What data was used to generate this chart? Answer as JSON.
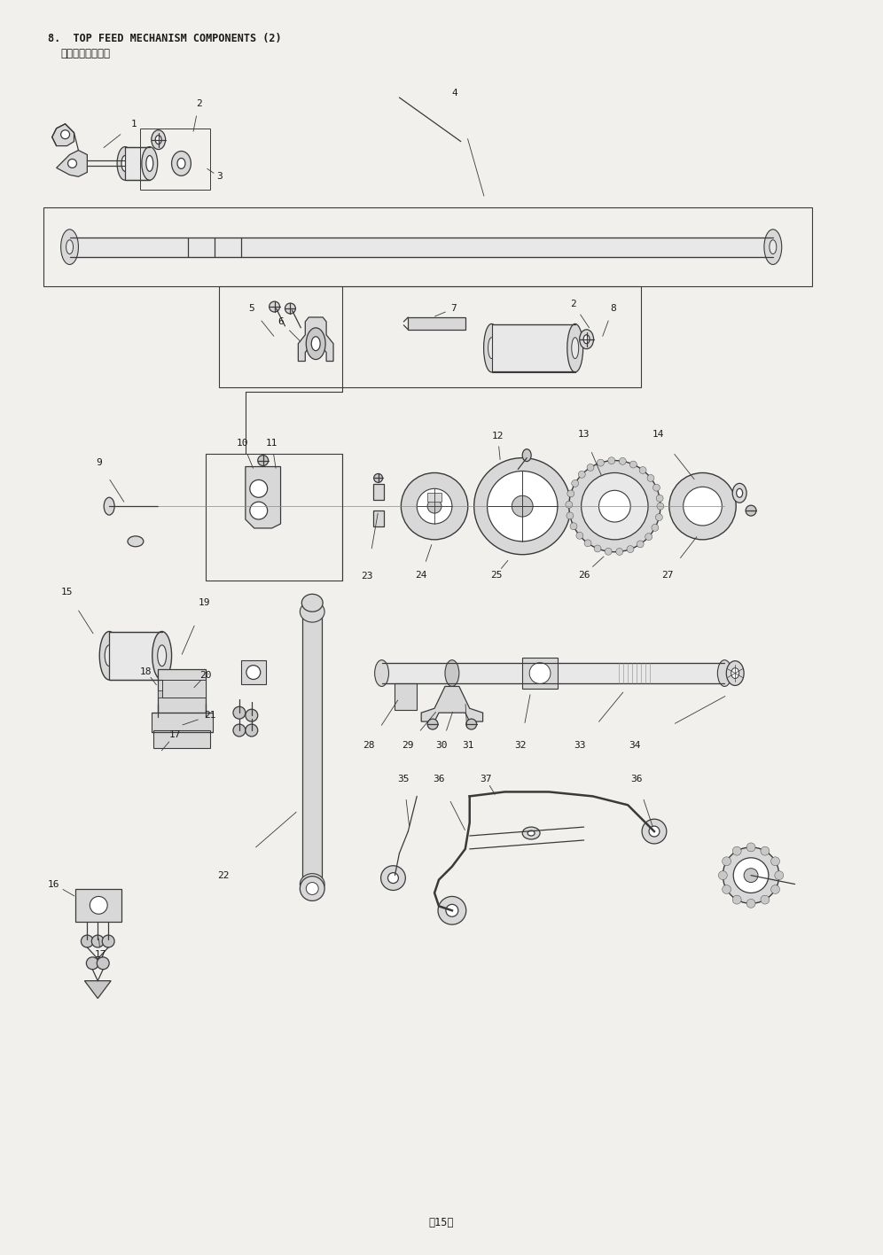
{
  "title_en": "8.  TOP FEED MECHANISM COMPONENTS (2)",
  "title_jp": "上送り関係（２）",
  "page_number": "−15−",
  "bg_color": "#f2f0ed",
  "line_color": "#3a3a3a",
  "text_color": "#1a1a1a",
  "title_fontsize": 8.5,
  "label_fontsize": 8.0,
  "page_fontsize": 8.5
}
